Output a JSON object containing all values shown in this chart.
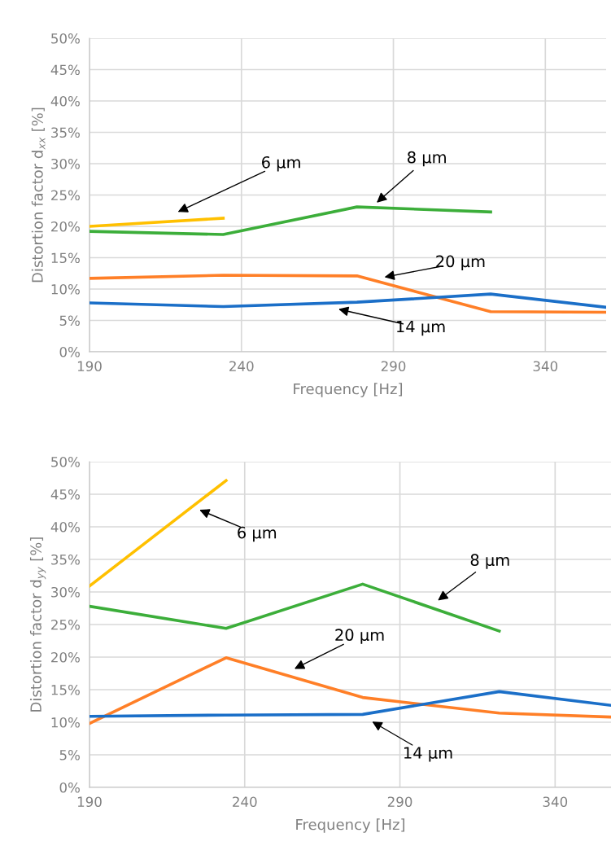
{
  "chart_data": [
    {
      "type": "line",
      "xlabel": "Frequency [Hz]",
      "ylabel": "Distortion factor d$_{xx}$ [%]",
      "xlim": [
        190,
        360
      ],
      "xticks": [
        190,
        240,
        290,
        340
      ],
      "ylim": [
        0,
        50
      ],
      "yticks": [
        {
          "value": 0,
          "label": "0%"
        },
        {
          "value": 5,
          "label": "5%"
        },
        {
          "value": 10,
          "label": "10%"
        },
        {
          "value": 15,
          "label": "15%"
        },
        {
          "value": 20,
          "label": "20%"
        },
        {
          "value": 25,
          "label": "25%"
        },
        {
          "value": 30,
          "label": "30%"
        },
        {
          "value": 35,
          "label": "35%"
        },
        {
          "value": 40,
          "label": "40%"
        },
        {
          "value": 45,
          "label": "45%"
        },
        {
          "value": 50,
          "label": "50%"
        }
      ],
      "grid": true,
      "marker": "none",
      "line_style": "solid",
      "series": [
        {
          "color": "#ffc000",
          "x": [
            190,
            234
          ],
          "values": [
            20.0,
            21.3
          ]
        },
        {
          "color": "#3cae3a",
          "x": [
            190,
            234,
            278,
            322
          ],
          "values": [
            19.2,
            18.7,
            23.1,
            22.3
          ]
        },
        {
          "color": "#ff7f27",
          "x": [
            190,
            234,
            278,
            322,
            360
          ],
          "values": [
            11.7,
            12.2,
            12.1,
            6.4,
            6.3
          ]
        },
        {
          "color": "#1b6fc8",
          "x": [
            190,
            234,
            278,
            322,
            360
          ],
          "values": [
            7.8,
            7.2,
            7.9,
            9.2,
            7.1
          ]
        }
      ],
      "annotations": [
        "6 µm",
        "8 µm",
        "20 µm",
        "14 µm"
      ]
    },
    {
      "type": "line",
      "xlabel": "Frequency [Hz]",
      "ylabel": "Distortion factor d$_{yy}$ [%]",
      "xlim": [
        190,
        358
      ],
      "xticks": [
        190,
        240,
        290,
        340
      ],
      "ylim": [
        0,
        50
      ],
      "yticks": [
        {
          "value": 0,
          "label": "0%"
        },
        {
          "value": 5,
          "label": "5%"
        },
        {
          "value": 10,
          "label": "10%"
        },
        {
          "value": 15,
          "label": "15%"
        },
        {
          "value": 20,
          "label": "20%"
        },
        {
          "value": 25,
          "label": "25%"
        },
        {
          "value": 30,
          "label": "30%"
        },
        {
          "value": 35,
          "label": "35%"
        },
        {
          "value": 40,
          "label": "40%"
        },
        {
          "value": 45,
          "label": "45%"
        },
        {
          "value": 50,
          "label": "50%"
        }
      ],
      "grid": true,
      "marker": "none",
      "line_style": "solid",
      "series": [
        {
          "color": "#ffc000",
          "x": [
            190,
            234
          ],
          "values": [
            30.9,
            47.1
          ]
        },
        {
          "color": "#3cae3a",
          "x": [
            190,
            234,
            278,
            322
          ],
          "values": [
            27.8,
            24.4,
            31.2,
            24.0
          ]
        },
        {
          "color": "#ff7f27",
          "x": [
            190,
            234,
            278,
            322,
            358
          ],
          "values": [
            9.8,
            19.9,
            13.8,
            11.4,
            10.8
          ]
        },
        {
          "color": "#1b6fc8",
          "x": [
            190,
            234,
            278,
            322,
            358
          ],
          "values": [
            10.9,
            11.1,
            11.2,
            14.7,
            12.6
          ]
        }
      ],
      "annotations": [
        "6 µm",
        "8 µm",
        "20 µm",
        "14 µm"
      ]
    }
  ]
}
